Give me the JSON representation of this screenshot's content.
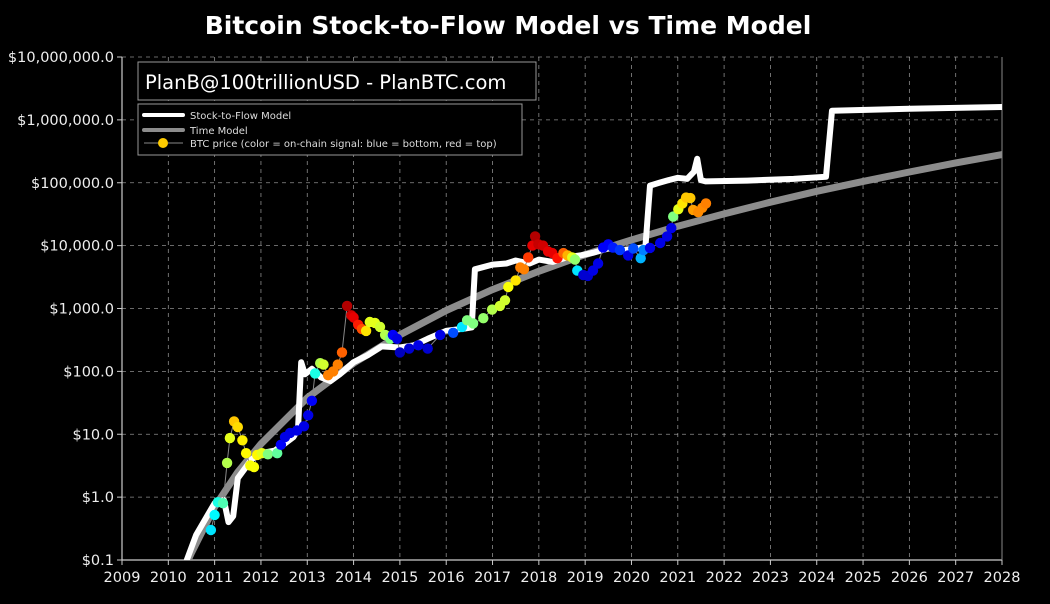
{
  "chart_data": {
    "type": "line",
    "title": "Bitcoin Stock-to-Flow Model vs Time Model",
    "watermark": "PlanB@100trillionUSD - PlanBTC.com",
    "xlabel": "",
    "ylabel": "",
    "xlim": [
      2009,
      2028
    ],
    "ylim": [
      0.1,
      10000000
    ],
    "y_scale": "log",
    "grid": true,
    "legend_position": "top-left",
    "x_ticks": [
      "2009",
      "2010",
      "2011",
      "2012",
      "2013",
      "2014",
      "2015",
      "2016",
      "2017",
      "2018",
      "2019",
      "2020",
      "2021",
      "2022",
      "2023",
      "2024",
      "2025",
      "2026",
      "2027",
      "2028"
    ],
    "y_ticks": [
      {
        "value": 0.1,
        "label": "$0.1"
      },
      {
        "value": 1,
        "label": "$1.0"
      },
      {
        "value": 10,
        "label": "$10.0"
      },
      {
        "value": 100,
        "label": "$100.0"
      },
      {
        "value": 1000,
        "label": "$1,000.0"
      },
      {
        "value": 10000,
        "label": "$10,000.0"
      },
      {
        "value": 100000,
        "label": "$100,000.0"
      },
      {
        "value": 1000000,
        "label": "$1,000,000.0"
      },
      {
        "value": 10000000,
        "label": "$10,000,000.0"
      }
    ],
    "colors": {
      "background": "#000000",
      "stock_to_flow": "#ffffff",
      "time_model": "#8c8c8c",
      "grid": "#bbbbbb",
      "price_line": "#888888"
    },
    "legend": [
      {
        "label": "Stock-to-Flow Model"
      },
      {
        "label": "Time Model"
      },
      {
        "label": "BTC price (color = on-chain signal: blue = bottom, red = top)"
      }
    ],
    "series": [
      {
        "name": "Stock-to-Flow Model",
        "points": [
          [
            2010.4,
            0.1
          ],
          [
            2010.6,
            0.25
          ],
          [
            2011.0,
            0.8
          ],
          [
            2011.2,
            0.9
          ],
          [
            2011.3,
            0.4
          ],
          [
            2011.4,
            0.5
          ],
          [
            2011.5,
            2
          ],
          [
            2011.8,
            4
          ],
          [
            2012.0,
            5
          ],
          [
            2012.3,
            5.5
          ],
          [
            2012.5,
            7
          ],
          [
            2012.7,
            9
          ],
          [
            2012.8,
            12
          ],
          [
            2012.87,
            140
          ],
          [
            2012.95,
            90
          ],
          [
            2013.1,
            110
          ],
          [
            2013.3,
            80
          ],
          [
            2013.5,
            70
          ],
          [
            2013.7,
            90
          ],
          [
            2014.0,
            140
          ],
          [
            2014.3,
            180
          ],
          [
            2014.6,
            250
          ],
          [
            2015.0,
            240
          ],
          [
            2015.3,
            260
          ],
          [
            2015.6,
            330
          ],
          [
            2016.0,
            440
          ],
          [
            2016.4,
            480
          ],
          [
            2016.55,
            500
          ],
          [
            2016.62,
            4200
          ],
          [
            2017.0,
            5000
          ],
          [
            2017.3,
            5200
          ],
          [
            2017.5,
            5800
          ],
          [
            2017.8,
            5200
          ],
          [
            2018.0,
            6000
          ],
          [
            2018.3,
            5500
          ],
          [
            2018.6,
            6500
          ],
          [
            2018.9,
            7000
          ],
          [
            2019.2,
            7800
          ],
          [
            2019.5,
            9000
          ],
          [
            2019.8,
            8500
          ],
          [
            2020.1,
            9000
          ],
          [
            2020.3,
            9500
          ],
          [
            2020.4,
            90000
          ],
          [
            2020.6,
            100000
          ],
          [
            2020.8,
            110000
          ],
          [
            2021.0,
            120000
          ],
          [
            2021.2,
            115000
          ],
          [
            2021.35,
            150000
          ],
          [
            2021.42,
            240000
          ],
          [
            2021.5,
            110000
          ],
          [
            2021.6,
            105000
          ],
          [
            2022.5,
            108000
          ],
          [
            2023.5,
            115000
          ],
          [
            2024.2,
            125000
          ],
          [
            2024.33,
            1400000
          ],
          [
            2026.0,
            1500000
          ],
          [
            2028.0,
            1600000
          ]
        ]
      },
      {
        "name": "Time Model",
        "points": [
          [
            2010.4,
            0.09
          ],
          [
            2010.5,
            0.13
          ],
          [
            2011,
            0.7
          ],
          [
            2011.5,
            2.5
          ],
          [
            2012,
            7
          ],
          [
            2013,
            38
          ],
          [
            2014,
            135
          ],
          [
            2015,
            380
          ],
          [
            2016,
            930
          ],
          [
            2017,
            2000
          ],
          [
            2018,
            3900
          ],
          [
            2019,
            7200
          ],
          [
            2020,
            12300
          ],
          [
            2021,
            20400
          ],
          [
            2022,
            32000
          ],
          [
            2023,
            49000
          ],
          [
            2024,
            73000
          ],
          [
            2025,
            105000
          ],
          [
            2026,
            148000
          ],
          [
            2027,
            207000
          ],
          [
            2028,
            280000
          ]
        ]
      },
      {
        "name": "BTC price (color = on-chain signal: blue = bottom, red = top)",
        "points": [
          [
            2010.92,
            0.3,
            0.35
          ],
          [
            2011.0,
            0.52,
            0.37
          ],
          [
            2011.07,
            0.83,
            0.4
          ],
          [
            2011.18,
            0.8,
            0.45
          ],
          [
            2011.27,
            3.5,
            0.55
          ],
          [
            2011.33,
            8.7,
            0.6
          ],
          [
            2011.42,
            16,
            0.68
          ],
          [
            2011.5,
            13,
            0.66
          ],
          [
            2011.6,
            8,
            0.64
          ],
          [
            2011.68,
            5,
            0.63
          ],
          [
            2011.77,
            3.2,
            0.62
          ],
          [
            2011.85,
            3.0,
            0.62
          ],
          [
            2011.92,
            4.7,
            0.63
          ],
          [
            2012.02,
            5,
            0.6
          ],
          [
            2012.15,
            4.8,
            0.5
          ],
          [
            2012.35,
            5,
            0.47
          ],
          [
            2012.43,
            6.8,
            0.12
          ],
          [
            2012.52,
            9,
            0.1
          ],
          [
            2012.63,
            10.5,
            0.1
          ],
          [
            2012.78,
            11.5,
            0.1
          ],
          [
            2012.93,
            13.4,
            0.1
          ],
          [
            2013.02,
            20,
            0.1
          ],
          [
            2013.1,
            34,
            0.12
          ],
          [
            2013.17,
            93,
            0.4
          ],
          [
            2013.28,
            135,
            0.55
          ],
          [
            2013.35,
            128,
            0.58
          ],
          [
            2013.45,
            87,
            0.75
          ],
          [
            2013.56,
            100,
            0.75
          ],
          [
            2013.66,
            128,
            0.75
          ],
          [
            2013.75,
            200,
            0.78
          ],
          [
            2013.86,
            1100,
            0.95
          ],
          [
            2013.95,
            780,
            0.92
          ],
          [
            2014.0,
            720,
            0.9
          ],
          [
            2014.1,
            550,
            0.85
          ],
          [
            2014.18,
            470,
            0.8
          ],
          [
            2014.27,
            440,
            0.65
          ],
          [
            2014.35,
            610,
            0.6
          ],
          [
            2014.46,
            590,
            0.6
          ],
          [
            2014.57,
            510,
            0.58
          ],
          [
            2014.68,
            380,
            0.55
          ],
          [
            2014.79,
            330,
            0.5
          ],
          [
            2014.85,
            380,
            0.12
          ],
          [
            2014.94,
            330,
            0.1
          ],
          [
            2015.0,
            200,
            0.06
          ],
          [
            2015.2,
            230,
            0.08
          ],
          [
            2015.4,
            260,
            0.1
          ],
          [
            2015.6,
            230,
            0.08
          ],
          [
            2015.87,
            380,
            0.1
          ],
          [
            2016.15,
            410,
            0.2
          ],
          [
            2016.34,
            510,
            0.35
          ],
          [
            2016.45,
            650,
            0.5
          ],
          [
            2016.58,
            580,
            0.5
          ],
          [
            2016.8,
            700,
            0.52
          ],
          [
            2016.99,
            960,
            0.55
          ],
          [
            2017.16,
            1100,
            0.58
          ],
          [
            2017.27,
            1350,
            0.58
          ],
          [
            2017.34,
            2200,
            0.62
          ],
          [
            2017.5,
            2800,
            0.65
          ],
          [
            2017.6,
            4500,
            0.75
          ],
          [
            2017.68,
            4200,
            0.75
          ],
          [
            2017.77,
            6500,
            0.82
          ],
          [
            2017.86,
            10000,
            0.9
          ],
          [
            2017.92,
            14000,
            0.95
          ],
          [
            2017.99,
            10500,
            0.93
          ],
          [
            2018.09,
            10000,
            0.92
          ],
          [
            2018.2,
            8100,
            0.9
          ],
          [
            2018.29,
            7600,
            0.9
          ],
          [
            2018.4,
            6300,
            0.86
          ],
          [
            2018.53,
            7600,
            0.78
          ],
          [
            2018.62,
            7000,
            0.7
          ],
          [
            2018.72,
            6500,
            0.6
          ],
          [
            2018.78,
            6000,
            0.52
          ],
          [
            2018.83,
            4000,
            0.35
          ],
          [
            2018.96,
            3400,
            0.08
          ],
          [
            2019.06,
            3300,
            0.08
          ],
          [
            2019.17,
            4000,
            0.1
          ],
          [
            2019.28,
            5200,
            0.1
          ],
          [
            2019.39,
            9300,
            0.12
          ],
          [
            2019.5,
            10500,
            0.12
          ],
          [
            2019.6,
            9300,
            0.15
          ],
          [
            2019.75,
            8500,
            0.18
          ],
          [
            2019.93,
            7000,
            0.1
          ],
          [
            2020.04,
            9000,
            0.2
          ],
          [
            2020.2,
            6300,
            0.3
          ],
          [
            2020.26,
            8500,
            0.25
          ],
          [
            2020.4,
            9200,
            0.1
          ],
          [
            2020.62,
            11000,
            0.1
          ],
          [
            2020.77,
            14000,
            0.1
          ],
          [
            2020.86,
            19000,
            0.1
          ],
          [
            2020.9,
            29000,
            0.5
          ],
          [
            2021.01,
            38000,
            0.6
          ],
          [
            2021.1,
            47000,
            0.65
          ],
          [
            2021.18,
            58000,
            0.68
          ],
          [
            2021.27,
            57000,
            0.68
          ],
          [
            2021.33,
            37000,
            0.72
          ],
          [
            2021.44,
            34000,
            0.74
          ],
          [
            2021.53,
            40000,
            0.74
          ],
          [
            2021.61,
            47000,
            0.75
          ]
        ]
      }
    ]
  }
}
